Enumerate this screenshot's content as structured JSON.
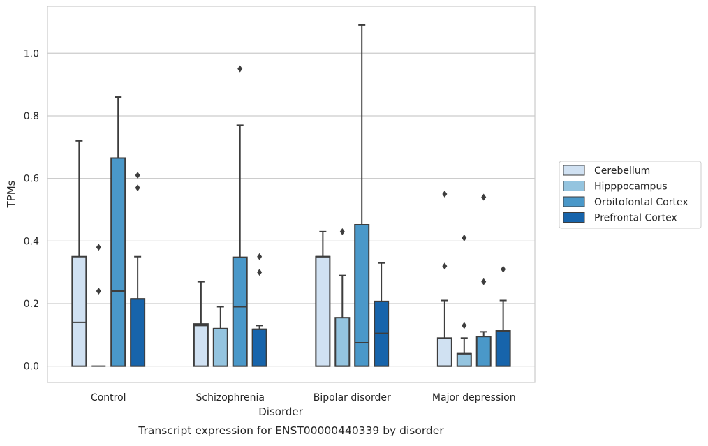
{
  "chart_data": {
    "type": "box",
    "xlabel": "Disorder",
    "ylabel": "TPMs",
    "caption": "Transcript expression for ENST00000440339 by disorder",
    "ylim": [
      -0.052,
      1.15
    ],
    "yticks": [
      0.0,
      0.2,
      0.4,
      0.6,
      0.8,
      1.0
    ],
    "ytick_labels": [
      "0.0",
      "0.2",
      "0.4",
      "0.6",
      "0.8",
      "1.0"
    ],
    "grid": "horizontal",
    "legend_position": "right",
    "categories": [
      "Control",
      "Schizophrenia",
      "Bipolar disorder",
      "Major depression"
    ],
    "series": [
      {
        "name": "Cerebellum",
        "color": "#d0e1f2",
        "boxes": [
          {
            "q1": 0.0,
            "median": 0.14,
            "q3": 0.35,
            "whisker_low": 0.0,
            "whisker_high": 0.72,
            "outliers": []
          },
          {
            "q1": 0.0,
            "median": 0.13,
            "q3": 0.135,
            "whisker_low": 0.0,
            "whisker_high": 0.27,
            "outliers": []
          },
          {
            "q1": 0.0,
            "median": 0.35,
            "q3": 0.35,
            "whisker_low": 0.0,
            "whisker_high": 0.43,
            "outliers": []
          },
          {
            "q1": 0.0,
            "median": 0.0,
            "q3": 0.09,
            "whisker_low": 0.0,
            "whisker_high": 0.21,
            "outliers": [
              0.32,
              0.55
            ]
          }
        ]
      },
      {
        "name": "Hipppocampus",
        "color": "#94c4df",
        "boxes": [
          {
            "q1": 0.0,
            "median": 0.0,
            "q3": 0.0,
            "whisker_low": 0.0,
            "whisker_high": 0.0,
            "outliers": [
              0.24,
              0.38
            ]
          },
          {
            "q1": 0.0,
            "median": 0.12,
            "q3": 0.12,
            "whisker_low": 0.0,
            "whisker_high": 0.19,
            "outliers": []
          },
          {
            "q1": 0.0,
            "median": 0.0,
            "q3": 0.155,
            "whisker_low": 0.0,
            "whisker_high": 0.29,
            "outliers": [
              0.43
            ]
          },
          {
            "q1": 0.0,
            "median": 0.04,
            "q3": 0.04,
            "whisker_low": 0.0,
            "whisker_high": 0.09,
            "outliers": [
              0.13,
              0.41
            ]
          }
        ]
      },
      {
        "name": "Orbitofontal Cortex",
        "color": "#4a98c9",
        "boxes": [
          {
            "q1": 0.0,
            "median": 0.24,
            "q3": 0.665,
            "whisker_low": 0.0,
            "whisker_high": 0.86,
            "outliers": []
          },
          {
            "q1": 0.0,
            "median": 0.19,
            "q3": 0.348,
            "whisker_low": 0.0,
            "whisker_high": 0.77,
            "outliers": [
              0.95
            ]
          },
          {
            "q1": 0.0,
            "median": 0.075,
            "q3": 0.452,
            "whisker_low": 0.0,
            "whisker_high": 1.09,
            "outliers": []
          },
          {
            "q1": 0.0,
            "median": 0.095,
            "q3": 0.095,
            "whisker_low": 0.0,
            "whisker_high": 0.11,
            "outliers": [
              0.27,
              0.54
            ]
          }
        ]
      },
      {
        "name": "Prefrontal Cortex",
        "color": "#1764ab",
        "boxes": [
          {
            "q1": 0.0,
            "median": 0.215,
            "q3": 0.215,
            "whisker_low": 0.0,
            "whisker_high": 0.35,
            "outliers": [
              0.57,
              0.61
            ]
          },
          {
            "q1": 0.0,
            "median": 0.118,
            "q3": 0.118,
            "whisker_low": 0.0,
            "whisker_high": 0.13,
            "outliers": [
              0.3,
              0.35
            ]
          },
          {
            "q1": 0.0,
            "median": 0.105,
            "q3": 0.207,
            "whisker_low": 0.0,
            "whisker_high": 0.33,
            "outliers": []
          },
          {
            "q1": 0.0,
            "median": 0.113,
            "q3": 0.113,
            "whisker_low": 0.0,
            "whisker_high": 0.21,
            "outliers": [
              0.31
            ]
          }
        ]
      }
    ]
  }
}
